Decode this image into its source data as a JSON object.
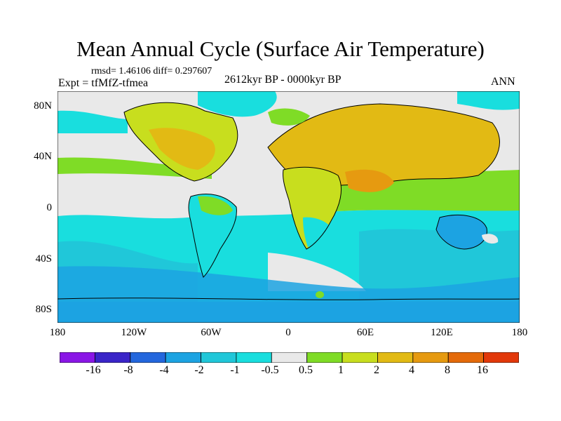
{
  "title": "Mean Annual Cycle (Surface Air Temperature)",
  "stats": "rmsd= 1.46106 diff= 0.297607",
  "experiment": "Expt = tfMfZ-tfmea",
  "period": "2612kyr BP - 0000kyr BP",
  "season": "ANN",
  "lat_labels": [
    "80N",
    "40N",
    "0",
    "40S",
    "80S"
  ],
  "lon_labels": [
    "180",
    "120W",
    "60W",
    "0",
    "60E",
    "120E",
    "180"
  ],
  "legend": {
    "labels": [
      "-16",
      "-8",
      "-4",
      "-2",
      "-1",
      "-0.5",
      "0.5",
      "1",
      "2",
      "4",
      "8",
      "16"
    ],
    "colors": [
      "#8a16e6",
      "#3a25c8",
      "#2467dd",
      "#1ca3e2",
      "#20c7d9",
      "#19dede",
      "#e9e9e9",
      "#7fdc26",
      "#c8de1e",
      "#e2ba14",
      "#e69a10",
      "#e46a0a",
      "#e2380a"
    ]
  },
  "colors": {
    "neutral": "#e9e9e9",
    "cool_1": "#19dede",
    "cool_2": "#20c7d9",
    "cool_3": "#1ca3e2",
    "warm_1": "#7fdc26",
    "warm_2": "#c8de1e",
    "warm_3": "#e2ba14",
    "warm_4": "#e69a10"
  }
}
